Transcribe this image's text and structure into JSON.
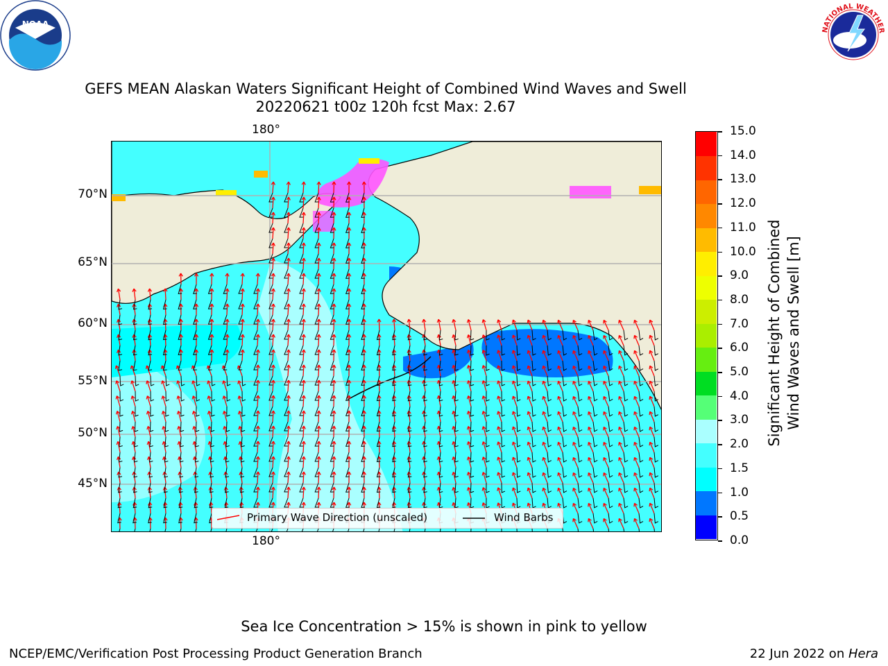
{
  "logos": {
    "noaa": {
      "center_text": "NOAA",
      "ring_text": "NATIONAL OCEANIC AND ATMOSPHERIC ADMINISTRATION",
      "bottom_text": "U.S. DEPARTMENT OF COMMERCE"
    },
    "nws": {
      "ring_text": "NATIONAL WEATHER SERVICE"
    }
  },
  "title": {
    "line1": "GEFS MEAN Alaskan Waters Significant Height of Combined Wind Waves and Swell",
    "line2": "20220621 t00z 120h fcst   Max: 2.67"
  },
  "map": {
    "lon_label_top": "180°",
    "lon_label_bottom": "180°",
    "lat_labels": [
      "70°N",
      "65°N",
      "60°N",
      "55°N",
      "50°N",
      "45°N"
    ],
    "colors": {
      "land": "#efedd9",
      "coast": "#000000",
      "grid": "#b0b0b0",
      "wave_arrow": "#ff0000",
      "wind_barb": "#000000"
    },
    "legend": {
      "wave_label": "Primary Wave Direction (unscaled)",
      "wind_label": "Wind Barbs"
    }
  },
  "colorbar": {
    "label_line1": "Significant Height of Combined",
    "label_line2": "Wind Waves and Swell [m]",
    "ticks": [
      "0.0",
      "0.5",
      "1.0",
      "1.5",
      "2.0",
      "3.0",
      "4.0",
      "5.0",
      "6.0",
      "7.0",
      "8.0",
      "9.0",
      "10.0",
      "11.0",
      "12.0",
      "13.0",
      "14.0",
      "15.0"
    ],
    "colors": [
      "#0000ff",
      "#0077ff",
      "#00ffff",
      "#44ffff",
      "#aaffff",
      "#55ff77",
      "#00dd22",
      "#66ee11",
      "#aaee00",
      "#ccee00",
      "#eeff00",
      "#ffee00",
      "#ffbb00",
      "#ff8800",
      "#ff6600",
      "#ff3300",
      "#ff0000"
    ]
  },
  "note": "Sea Ice Concentration > 15% is shown in pink to yellow",
  "footer": {
    "left": "NCEP/EMC/Verification Post Processing Product Generation Branch",
    "right_prefix": "22 Jun 2022 on ",
    "right_host": "Hera"
  }
}
